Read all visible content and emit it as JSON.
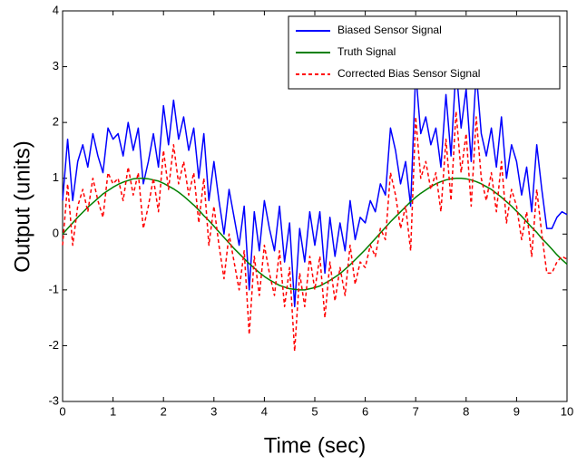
{
  "chart_data": {
    "type": "line",
    "xlabel": "Time (sec)",
    "ylabel": "Output (units)",
    "xlim": [
      0,
      10
    ],
    "xticks": [
      0,
      1,
      2,
      3,
      4,
      5,
      6,
      7,
      8,
      9,
      10
    ],
    "ylim": [
      -3,
      4
    ],
    "yticks": [
      -3,
      -2,
      -1,
      0,
      1,
      2,
      3,
      4
    ],
    "legend": "upper right",
    "grid": false,
    "x": [
      0,
      0.1,
      0.2,
      0.3,
      0.4,
      0.5,
      0.6,
      0.7,
      0.8,
      0.9,
      1,
      1.1,
      1.2,
      1.3,
      1.4,
      1.5,
      1.6,
      1.7,
      1.8,
      1.9,
      2,
      2.1,
      2.2,
      2.3,
      2.4,
      2.5,
      2.6,
      2.7,
      2.8,
      2.9,
      3,
      3.1,
      3.2,
      3.3,
      3.4,
      3.5,
      3.6,
      3.7,
      3.8,
      3.9,
      4,
      4.1,
      4.2,
      4.3,
      4.4,
      4.5,
      4.6,
      4.7,
      4.8,
      4.9,
      5,
      5.1,
      5.2,
      5.3,
      5.4,
      5.5,
      5.6,
      5.7,
      5.8,
      5.9,
      6,
      6.1,
      6.2,
      6.3,
      6.4,
      6.5,
      6.6,
      6.7,
      6.8,
      6.9,
      7,
      7.1,
      7.2,
      7.3,
      7.4,
      7.5,
      7.6,
      7.7,
      7.8,
      7.9,
      8,
      8.1,
      8.2,
      8.3,
      8.4,
      8.5,
      8.6,
      8.7,
      8.8,
      8.9,
      9,
      9.1,
      9.2,
      9.3,
      9.4,
      9.5,
      9.6,
      9.7,
      9.8,
      9.9,
      10
    ],
    "series": [
      {
        "name": "Biased Sensor Signal",
        "color": "#0000ff",
        "dash": false,
        "values": [
          0.6,
          1.7,
          0.6,
          1.3,
          1.6,
          1.2,
          1.8,
          1.4,
          1.1,
          1.9,
          1.7,
          1.8,
          1.4,
          2.0,
          1.5,
          1.9,
          0.9,
          1.3,
          1.8,
          1.2,
          2.3,
          1.6,
          2.4,
          1.7,
          2.1,
          1.5,
          1.9,
          1.0,
          1.8,
          0.6,
          1.3,
          0.6,
          0.0,
          0.8,
          0.3,
          -0.2,
          0.5,
          -1.0,
          0.4,
          -0.3,
          0.6,
          0.1,
          -0.3,
          0.5,
          -0.5,
          0.2,
          -1.3,
          0.1,
          -0.5,
          0.4,
          -0.2,
          0.4,
          -0.7,
          0.3,
          -0.4,
          0.2,
          -0.3,
          0.6,
          -0.1,
          0.3,
          0.2,
          0.6,
          0.4,
          0.9,
          0.7,
          1.9,
          1.5,
          0.9,
          1.3,
          0.5,
          2.9,
          1.8,
          2.1,
          1.6,
          1.9,
          1.2,
          2.5,
          1.4,
          3.0,
          1.9,
          2.6,
          1.3,
          2.9,
          1.8,
          1.4,
          1.9,
          1.2,
          2.1,
          1.0,
          1.6,
          1.3,
          0.7,
          1.2,
          0.4,
          1.6,
          0.8,
          0.1,
          0.1,
          0.3,
          0.4,
          0.35
        ]
      },
      {
        "name": "Truth Signal",
        "color": "#008000",
        "dash": false,
        "values": [
          0,
          0.1,
          0.2,
          0.3,
          0.39,
          0.48,
          0.56,
          0.64,
          0.72,
          0.78,
          0.84,
          0.89,
          0.93,
          0.96,
          0.99,
          1.0,
          1.0,
          0.99,
          0.97,
          0.95,
          0.91,
          0.86,
          0.81,
          0.75,
          0.68,
          0.6,
          0.52,
          0.43,
          0.33,
          0.24,
          0.14,
          0.04,
          -0.06,
          -0.16,
          -0.26,
          -0.35,
          -0.44,
          -0.53,
          -0.61,
          -0.69,
          -0.76,
          -0.82,
          -0.87,
          -0.92,
          -0.95,
          -0.98,
          -0.99,
          -1.0,
          -1.0,
          -0.98,
          -0.96,
          -0.93,
          -0.88,
          -0.83,
          -0.77,
          -0.71,
          -0.63,
          -0.55,
          -0.46,
          -0.37,
          -0.28,
          -0.18,
          -0.08,
          0.02,
          0.12,
          0.22,
          0.31,
          0.4,
          0.49,
          0.58,
          0.66,
          0.73,
          0.79,
          0.85,
          0.9,
          0.94,
          0.97,
          0.99,
          1.0,
          1.0,
          0.99,
          0.97,
          0.94,
          0.9,
          0.85,
          0.8,
          0.73,
          0.66,
          0.58,
          0.5,
          0.41,
          0.32,
          0.22,
          0.12,
          0.03,
          -0.08,
          -0.17,
          -0.27,
          -0.37,
          -0.46,
          -0.54
        ]
      },
      {
        "name": "Corrected Bias Sensor Signal",
        "color": "#ff0000",
        "dash": true,
        "values": [
          -0.2,
          0.9,
          -0.2,
          0.5,
          0.8,
          0.4,
          1.0,
          0.6,
          0.3,
          1.1,
          0.9,
          1.0,
          0.6,
          1.2,
          0.7,
          1.1,
          0.1,
          0.5,
          1.0,
          0.4,
          1.5,
          0.8,
          1.6,
          0.9,
          1.3,
          0.7,
          1.1,
          0.2,
          1.0,
          -0.2,
          0.5,
          -0.2,
          -0.8,
          0.0,
          -0.5,
          -1.0,
          -0.3,
          -1.8,
          -0.4,
          -1.1,
          -0.2,
          -0.7,
          -1.1,
          -0.3,
          -1.3,
          -0.6,
          -2.1,
          -0.7,
          -1.3,
          -0.4,
          -1.0,
          -0.4,
          -1.5,
          -0.5,
          -1.2,
          -0.6,
          -1.1,
          -0.2,
          -0.9,
          -0.5,
          -0.6,
          -0.2,
          -0.4,
          0.1,
          -0.1,
          1.1,
          0.7,
          0.1,
          0.5,
          -0.3,
          2.1,
          1.0,
          1.3,
          0.8,
          1.1,
          0.4,
          1.7,
          0.6,
          2.2,
          1.1,
          1.8,
          0.5,
          2.1,
          1.0,
          0.6,
          1.1,
          0.4,
          1.3,
          0.2,
          0.8,
          0.5,
          -0.1,
          0.4,
          -0.4,
          0.8,
          0.0,
          -0.7,
          -0.7,
          -0.5,
          -0.4,
          -0.45
        ]
      }
    ]
  }
}
